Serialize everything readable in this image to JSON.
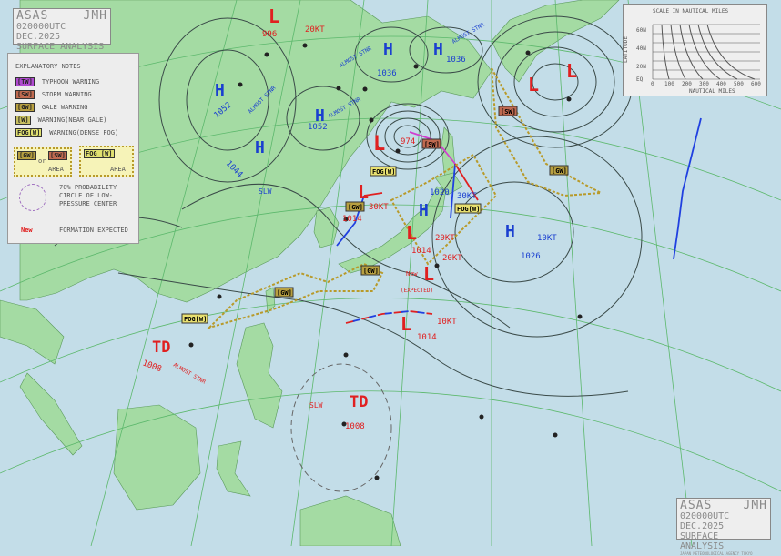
{
  "header": {
    "agency_code": "ASAS",
    "agency": "JMH",
    "datetime": "020000UTC DEC.2025",
    "title": "SURFACE ANALYSIS"
  },
  "footer": {
    "agency_code": "ASAS",
    "agency": "JMH",
    "datetime": "020000UTC DEC.2025",
    "title": "SURFACE ANALYSIS",
    "credit": "JAPAN METEOROLOGICAL AGENCY TOKYO"
  },
  "legend": {
    "title": "EXPLANATORY NOTES",
    "items": [
      {
        "tag": "[TW]",
        "label": "TYPHOON WARNING",
        "color": "#b04ad0"
      },
      {
        "tag": "[SW]",
        "label": "STORM WARNING",
        "color": "#c06a50"
      },
      {
        "tag": "[GW]",
        "label": "GALE WARNING",
        "color": "#b8a040"
      },
      {
        "tag": "[W]",
        "label": "WARNING(NEAR GALE)",
        "color": "#c8c060"
      },
      {
        "tag": "FOG[W]",
        "label": "WARNING(DENSE FOG)",
        "color": "#e0e070"
      }
    ],
    "area1": {
      "tag_a": "[GW]",
      "or": "or",
      "tag_b": "[SW]",
      "label": "AREA"
    },
    "area2": {
      "tag": "FOG [W]",
      "label": "AREA"
    },
    "circle_label": "70% PROBABILITY CIRCLE OF LOW-PRESSURE CENTER",
    "new_tag": "New",
    "new_label": "FORMATION EXPECTED"
  },
  "scale": {
    "title": "SCALE IN NAUTICAL MILES",
    "ylabel": "LATITUDE",
    "xlabel": "NAUTICAL MILES",
    "lat_ticks": [
      "60N",
      "40N",
      "20N",
      "EQ"
    ],
    "nm_ticks": [
      "0",
      "100",
      "200",
      "300",
      "400",
      "500",
      "600"
    ]
  },
  "systems": {
    "l_north": {
      "symbol": "L",
      "pressure": "996",
      "motion": "20KT"
    },
    "h_west1": {
      "symbol": "H",
      "pressure": "1052",
      "motion": "ALMOST STNR"
    },
    "h_west2": {
      "symbol": "H",
      "pressure": "1052",
      "motion": "ALMOST STNR"
    },
    "h_west3": {
      "symbol": "H",
      "pressure": "1044",
      "motion": "SLW"
    },
    "h_ne1": {
      "symbol": "H",
      "pressure": "1036",
      "motion": "ALMOST STNR"
    },
    "h_ne2": {
      "symbol": "H",
      "pressure": "1036",
      "motion": "ALMOST STNR"
    },
    "l_deep": {
      "symbol": "L",
      "pressure": "974"
    },
    "l_korea": {
      "symbol": "L",
      "pressure": "1014",
      "motion": "30KT"
    },
    "h_japan": {
      "symbol": "H",
      "pressure": "1020",
      "motion": "30KT"
    },
    "l_japan": {
      "symbol": "L",
      "pressure": "1014",
      "motion": "20KT"
    },
    "l_extra_motion": "20KT",
    "l_new": {
      "symbol": "L",
      "new": "New",
      "expected": "(EXPECTED)"
    },
    "h_pacific": {
      "symbol": "H",
      "pressure": "1026",
      "motion": "10KT"
    },
    "l_south": {
      "symbol": "L",
      "pressure": "1014",
      "motion": "10KT"
    },
    "l_ne1": {
      "symbol": "L"
    },
    "l_ne2": {
      "symbol": "L"
    },
    "td_west": {
      "symbol": "TD",
      "pressure": "1008",
      "motion": "ALMOST STNR"
    },
    "td_south": {
      "symbol": "TD",
      "pressure": "1008",
      "motion": "SLW"
    }
  },
  "warnings": [
    {
      "tag": "[SW]",
      "color": "#c06a50"
    },
    {
      "tag": "FOG[W]",
      "color": "#e8e070"
    },
    {
      "tag": "[GW]",
      "color": "#b8a040"
    },
    {
      "tag": "FOG[W]",
      "color": "#e8e070"
    },
    {
      "tag": "[GW]",
      "color": "#b8a040"
    },
    {
      "tag": "[GW]",
      "color": "#b8a040"
    },
    {
      "tag": "FOG[W]",
      "color": "#e8e070"
    },
    {
      "tag": "[SW]",
      "color": "#c06a50"
    },
    {
      "tag": "[GW]",
      "color": "#b8a040"
    }
  ],
  "colors": {
    "ocean": "#c3dde8",
    "land": "#a4dba3",
    "high": "#1a3fd0",
    "low": "#e02020",
    "isobar": "#3a4a48",
    "grid": "#5cb86c"
  }
}
